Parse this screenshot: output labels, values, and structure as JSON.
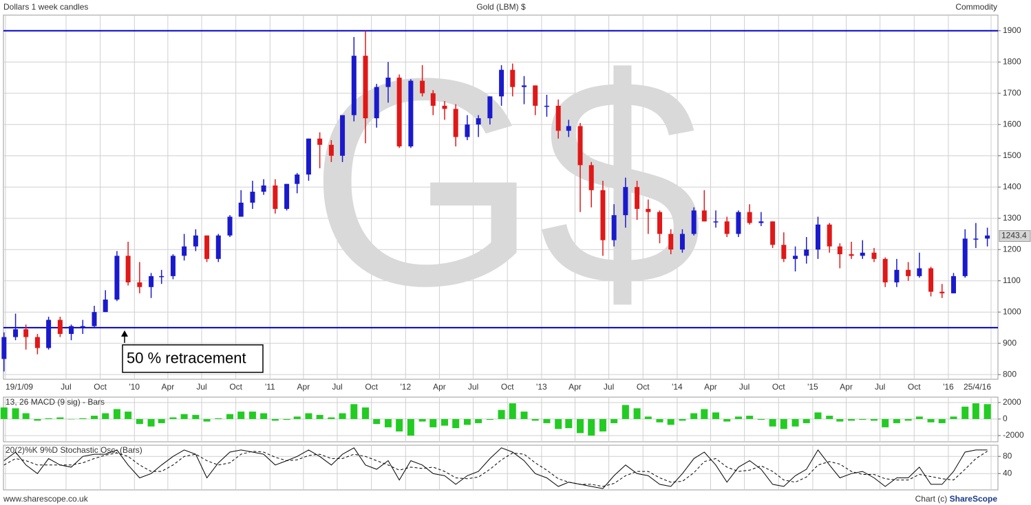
{
  "header": {
    "left": "Dollars 1 week candles",
    "title": "Gold (LBM) $",
    "right": "Commodity"
  },
  "footer": {
    "left": "www.sharescope.co.uk",
    "right_prefix": "Chart (c) ",
    "right_brand": "ShareScope"
  },
  "chart_data": [
    {
      "type": "candlestick",
      "watermark": "G$",
      "up_color": "#1a1acc",
      "down_color": "#e01818",
      "x": [
        "2009-01",
        "2009-02",
        "2009-03",
        "2009-04",
        "2009-05",
        "2009-06",
        "2009-07",
        "2009-08",
        "2009-09",
        "2009-10",
        "2009-11",
        "2009-12",
        "2010-01",
        "2010-02",
        "2010-03",
        "2010-04",
        "2010-05",
        "2010-06",
        "2010-07",
        "2010-08",
        "2010-09",
        "2010-10",
        "2010-11",
        "2010-12",
        "2011-01",
        "2011-02",
        "2011-03",
        "2011-04",
        "2011-05",
        "2011-06",
        "2011-07",
        "2011-08",
        "2011-09",
        "2011-10",
        "2011-11",
        "2011-12",
        "2012-01",
        "2012-02",
        "2012-03",
        "2012-04",
        "2012-05",
        "2012-06",
        "2012-07",
        "2012-08",
        "2012-09",
        "2012-10",
        "2012-11",
        "2012-12",
        "2013-01",
        "2013-02",
        "2013-03",
        "2013-04",
        "2013-05",
        "2013-06",
        "2013-07",
        "2013-08",
        "2013-09",
        "2013-10",
        "2013-11",
        "2013-12",
        "2014-01",
        "2014-02",
        "2014-03",
        "2014-04",
        "2014-05",
        "2014-06",
        "2014-07",
        "2014-08",
        "2014-09",
        "2014-10",
        "2014-11",
        "2014-12",
        "2015-01",
        "2015-02",
        "2015-03",
        "2015-04",
        "2015-05",
        "2015-06",
        "2015-07",
        "2015-08",
        "2015-09",
        "2015-10",
        "2015-11",
        "2015-12",
        "2016-01",
        "2016-02",
        "2016-03",
        "2016-04"
      ],
      "opens": [
        850,
        920,
        945,
        920,
        885,
        975,
        930,
        955,
        955,
        1000,
        1040,
        1180,
        1095,
        1080,
        1115,
        1115,
        1180,
        1210,
        1245,
        1170,
        1245,
        1305,
        1350,
        1385,
        1405,
        1330,
        1410,
        1440,
        1555,
        1535,
        1500,
        1630,
        1820,
        1620,
        1720,
        1750,
        1530,
        1740,
        1700,
        1660,
        1650,
        1560,
        1600,
        1620,
        1690,
        1775,
        1720,
        1725,
        1660,
        1660,
        1580,
        1595,
        1470,
        1390,
        1230,
        1310,
        1400,
        1330,
        1320,
        1250,
        1200,
        1250,
        1325,
        1290,
        1290,
        1250,
        1320,
        1285,
        1290,
        1215,
        1170,
        1180,
        1200,
        1280,
        1210,
        1185,
        1180,
        1190,
        1170,
        1095,
        1135,
        1115,
        1140,
        1065,
        1060,
        1115,
        1235,
        1235
      ],
      "highs": [
        935,
        995,
        960,
        930,
        985,
        985,
        960,
        975,
        1020,
        1070,
        1195,
        1225,
        1160,
        1125,
        1135,
        1185,
        1250,
        1265,
        1245,
        1250,
        1310,
        1390,
        1420,
        1425,
        1425,
        1410,
        1445,
        1555,
        1575,
        1550,
        1630,
        1880,
        1900,
        1730,
        1800,
        1760,
        1745,
        1790,
        1710,
        1675,
        1665,
        1630,
        1630,
        1690,
        1790,
        1795,
        1755,
        1725,
        1695,
        1680,
        1615,
        1605,
        1480,
        1420,
        1345,
        1430,
        1420,
        1360,
        1325,
        1265,
        1265,
        1335,
        1390,
        1325,
        1305,
        1325,
        1345,
        1320,
        1290,
        1255,
        1210,
        1240,
        1305,
        1285,
        1220,
        1225,
        1230,
        1205,
        1175,
        1170,
        1160,
        1190,
        1145,
        1090,
        1125,
        1265,
        1285,
        1270
      ],
      "lows": [
        810,
        910,
        880,
        865,
        880,
        920,
        910,
        930,
        950,
        1000,
        1035,
        1085,
        1060,
        1045,
        1090,
        1105,
        1165,
        1195,
        1160,
        1160,
        1240,
        1310,
        1330,
        1375,
        1315,
        1325,
        1380,
        1420,
        1460,
        1480,
        1480,
        1610,
        1540,
        1590,
        1670,
        1525,
        1525,
        1690,
        1630,
        1615,
        1530,
        1550,
        1560,
        1600,
        1660,
        1690,
        1665,
        1630,
        1625,
        1555,
        1560,
        1320,
        1335,
        1180,
        1210,
        1270,
        1295,
        1250,
        1220,
        1185,
        1190,
        1245,
        1290,
        1270,
        1240,
        1240,
        1280,
        1275,
        1205,
        1160,
        1130,
        1155,
        1170,
        1190,
        1140,
        1170,
        1170,
        1160,
        1080,
        1080,
        1100,
        1110,
        1050,
        1045,
        1060,
        1110,
        1205,
        1210
      ],
      "closes": [
        920,
        945,
        920,
        885,
        975,
        930,
        955,
        955,
        1000,
        1040,
        1180,
        1095,
        1080,
        1115,
        1115,
        1180,
        1210,
        1245,
        1170,
        1245,
        1305,
        1350,
        1385,
        1405,
        1330,
        1410,
        1440,
        1555,
        1535,
        1500,
        1630,
        1820,
        1620,
        1720,
        1750,
        1530,
        1740,
        1700,
        1660,
        1650,
        1560,
        1600,
        1620,
        1690,
        1775,
        1720,
        1725,
        1660,
        1660,
        1580,
        1595,
        1470,
        1390,
        1230,
        1310,
        1400,
        1330,
        1320,
        1250,
        1200,
        1250,
        1325,
        1290,
        1290,
        1250,
        1320,
        1285,
        1290,
        1215,
        1170,
        1180,
        1200,
        1280,
        1210,
        1185,
        1180,
        1190,
        1170,
        1095,
        1135,
        1115,
        1140,
        1065,
        1060,
        1115,
        1235,
        1235,
        1245
      ],
      "hlines": [
        1900,
        950
      ],
      "hline_color": "#0000cc",
      "annotation": "50 % retracement",
      "last_value": 1243.4,
      "xlim": [
        "2009-01-19",
        "2016-04-25"
      ],
      "xticks": [
        {
          "value": "2009-01-19",
          "label": "19/1/09"
        },
        {
          "value": "2009-07",
          "label": "Jul"
        },
        {
          "value": "2009-10",
          "label": "Oct"
        },
        {
          "value": "2010-01",
          "label": "'10"
        },
        {
          "value": "2010-04",
          "label": "Apr"
        },
        {
          "value": "2010-07",
          "label": "Jul"
        },
        {
          "value": "2010-10",
          "label": "Oct"
        },
        {
          "value": "2011-01",
          "label": "'11"
        },
        {
          "value": "2011-04",
          "label": "Apr"
        },
        {
          "value": "2011-07",
          "label": "Jul"
        },
        {
          "value": "2011-10",
          "label": "Oct"
        },
        {
          "value": "2012-01",
          "label": "'12"
        },
        {
          "value": "2012-04",
          "label": "Apr"
        },
        {
          "value": "2012-07",
          "label": "Jul"
        },
        {
          "value": "2012-10",
          "label": "Oct"
        },
        {
          "value": "2013-01",
          "label": "'13"
        },
        {
          "value": "2013-04",
          "label": "Apr"
        },
        {
          "value": "2013-07",
          "label": "Jul"
        },
        {
          "value": "2013-10",
          "label": "Oct"
        },
        {
          "value": "2014-01",
          "label": "'14"
        },
        {
          "value": "2014-04",
          "label": "Apr"
        },
        {
          "value": "2014-07",
          "label": "Jul"
        },
        {
          "value": "2014-10",
          "label": "Oct"
        },
        {
          "value": "2015-01",
          "label": "'15"
        },
        {
          "value": "2015-04",
          "label": "Apr"
        },
        {
          "value": "2015-07",
          "label": "Jul"
        },
        {
          "value": "2015-10",
          "label": "Oct"
        },
        {
          "value": "2016-01",
          "label": "'16"
        },
        {
          "value": "2016-04-25",
          "label": "25/4/16"
        }
      ],
      "ylim": [
        785,
        1950
      ],
      "yticks": [
        800,
        900,
        1000,
        1100,
        1200,
        1300,
        1400,
        1500,
        1600,
        1700,
        1800,
        1900
      ],
      "grid": true
    },
    {
      "type": "bar",
      "title": "13, 26 MACD (9 sig) - Bars",
      "color": "#22cc22",
      "x": [
        "2009-01",
        "2009-02",
        "2009-03",
        "2009-04",
        "2009-05",
        "2009-06",
        "2009-07",
        "2009-08",
        "2009-09",
        "2009-10",
        "2009-11",
        "2009-12",
        "2010-01",
        "2010-02",
        "2010-03",
        "2010-04",
        "2010-05",
        "2010-06",
        "2010-07",
        "2010-08",
        "2010-09",
        "2010-10",
        "2010-11",
        "2010-12",
        "2011-01",
        "2011-02",
        "2011-03",
        "2011-04",
        "2011-05",
        "2011-06",
        "2011-07",
        "2011-08",
        "2011-09",
        "2011-10",
        "2011-11",
        "2011-12",
        "2012-01",
        "2012-02",
        "2012-03",
        "2012-04",
        "2012-05",
        "2012-06",
        "2012-07",
        "2012-08",
        "2012-09",
        "2012-10",
        "2012-11",
        "2012-12",
        "2013-01",
        "2013-02",
        "2013-03",
        "2013-04",
        "2013-05",
        "2013-06",
        "2013-07",
        "2013-08",
        "2013-09",
        "2013-10",
        "2013-11",
        "2013-12",
        "2014-01",
        "2014-02",
        "2014-03",
        "2014-04",
        "2014-05",
        "2014-06",
        "2014-07",
        "2014-08",
        "2014-09",
        "2014-10",
        "2014-11",
        "2014-12",
        "2015-01",
        "2015-02",
        "2015-03",
        "2015-04",
        "2015-05",
        "2015-06",
        "2015-07",
        "2015-08",
        "2015-09",
        "2015-10",
        "2015-11",
        "2015-12",
        "2016-01",
        "2016-02",
        "2016-03",
        "2016-04"
      ],
      "values": [
        1400,
        1300,
        700,
        -200,
        100,
        200,
        0,
        100,
        400,
        700,
        1200,
        900,
        -600,
        -900,
        -500,
        200,
        600,
        500,
        -300,
        100,
        600,
        900,
        900,
        700,
        -200,
        -100,
        300,
        700,
        500,
        200,
        700,
        1800,
        1400,
        -600,
        -1000,
        -1500,
        -2000,
        -300,
        -1000,
        -800,
        -1100,
        -700,
        -500,
        -100,
        1100,
        1900,
        900,
        -200,
        -500,
        -1200,
        -1100,
        -1700,
        -2000,
        -1500,
        -500,
        1700,
        1300,
        300,
        -400,
        -700,
        -200,
        700,
        1200,
        800,
        -300,
        300,
        400,
        -100,
        -900,
        -1200,
        -900,
        -500,
        800,
        400,
        -300,
        -200,
        -100,
        -200,
        -1000,
        -500,
        -200,
        300,
        -400,
        -500,
        300,
        1500,
        1900,
        1800
      ],
      "ylim": [
        -2750,
        2650
      ],
      "yticks": [
        -2000,
        0,
        2000
      ],
      "grid": true
    },
    {
      "type": "line",
      "title": "20(2)%K 9%D Stochastic Osc. (Bars)",
      "x": [
        "2009-01",
        "2009-02",
        "2009-03",
        "2009-04",
        "2009-05",
        "2009-06",
        "2009-07",
        "2009-08",
        "2009-09",
        "2009-10",
        "2009-11",
        "2009-12",
        "2010-01",
        "2010-02",
        "2010-03",
        "2010-04",
        "2010-05",
        "2010-06",
        "2010-07",
        "2010-08",
        "2010-09",
        "2010-10",
        "2010-11",
        "2010-12",
        "2011-01",
        "2011-02",
        "2011-03",
        "2011-04",
        "2011-05",
        "2011-06",
        "2011-07",
        "2011-08",
        "2011-09",
        "2011-10",
        "2011-11",
        "2011-12",
        "2012-01",
        "2012-02",
        "2012-03",
        "2012-04",
        "2012-05",
        "2012-06",
        "2012-07",
        "2012-08",
        "2012-09",
        "2012-10",
        "2012-11",
        "2012-12",
        "2013-01",
        "2013-02",
        "2013-03",
        "2013-04",
        "2013-05",
        "2013-06",
        "2013-07",
        "2013-08",
        "2013-09",
        "2013-10",
        "2013-11",
        "2013-12",
        "2014-01",
        "2014-02",
        "2014-03",
        "2014-04",
        "2014-05",
        "2014-06",
        "2014-07",
        "2014-08",
        "2014-09",
        "2014-10",
        "2014-11",
        "2014-12",
        "2015-01",
        "2015-02",
        "2015-03",
        "2015-04",
        "2015-05",
        "2015-06",
        "2015-07",
        "2015-08",
        "2015-09",
        "2015-10",
        "2015-11",
        "2015-12",
        "2016-01",
        "2016-02",
        "2016-03",
        "2016-04"
      ],
      "series": [
        {
          "color": "#000000",
          "values": [
            70,
            90,
            60,
            40,
            75,
            60,
            55,
            80,
            85,
            85,
            95,
            60,
            30,
            40,
            60,
            80,
            95,
            85,
            30,
            65,
            90,
            95,
            90,
            85,
            60,
            70,
            80,
            95,
            80,
            60,
            85,
            100,
            60,
            50,
            70,
            25,
            70,
            60,
            40,
            35,
            15,
            35,
            45,
            75,
            100,
            90,
            70,
            40,
            30,
            10,
            20,
            15,
            10,
            5,
            35,
            60,
            40,
            35,
            15,
            10,
            40,
            75,
            90,
            60,
            20,
            55,
            70,
            50,
            15,
            10,
            35,
            50,
            95,
            60,
            30,
            40,
            45,
            30,
            10,
            30,
            30,
            55,
            15,
            15,
            45,
            90,
            95,
            95
          ]
        },
        {
          "color": "#000000",
          "dashed": true,
          "values": [
            60,
            75,
            70,
            60,
            60,
            60,
            60,
            65,
            75,
            83,
            88,
            80,
            60,
            45,
            45,
            60,
            80,
            85,
            70,
            60,
            65,
            85,
            92,
            90,
            78,
            70,
            72,
            82,
            85,
            75,
            75,
            85,
            80,
            70,
            60,
            48,
            55,
            52,
            55,
            45,
            30,
            28,
            32,
            50,
            72,
            88,
            85,
            65,
            48,
            28,
            20,
            15,
            15,
            10,
            17,
            35,
            45,
            45,
            30,
            20,
            22,
            42,
            68,
            75,
            55,
            45,
            48,
            58,
            45,
            25,
            20,
            32,
            60,
            68,
            62,
            45,
            38,
            38,
            28,
            25,
            25,
            38,
            33,
            28,
            25,
            50,
            75,
            92
          ]
        }
      ],
      "ylim": [
        2,
        106
      ],
      "yticks": [
        40,
        80
      ],
      "grid": true
    }
  ]
}
